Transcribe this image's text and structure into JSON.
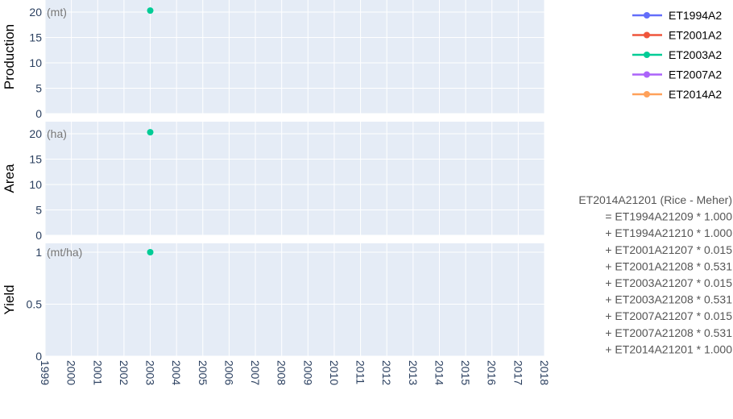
{
  "chart_data": {
    "type": "scatter",
    "x_range": [
      1999,
      2018
    ],
    "x_ticks": [
      "1999",
      "2000",
      "2001",
      "2002",
      "2003",
      "2004",
      "2005",
      "2006",
      "2007",
      "2008",
      "2009",
      "2010",
      "2011",
      "2012",
      "2013",
      "2014",
      "2015",
      "2016",
      "2017",
      "2018"
    ],
    "grid": true,
    "legend_position": "top-right",
    "panels": [
      {
        "name": "production",
        "ylabel": "Production",
        "unit": "(mt)",
        "ylim": [
          0,
          21.5
        ],
        "y_ticks": [
          {
            "value": 0,
            "label": "0"
          },
          {
            "value": 5,
            "label": "5"
          },
          {
            "value": 10,
            "label": "10"
          },
          {
            "value": 15,
            "label": "15"
          },
          {
            "value": 20,
            "label": "20"
          }
        ],
        "points": [
          {
            "series": "ET2003A2",
            "x": 2003,
            "y": 20.3
          }
        ]
      },
      {
        "name": "area",
        "ylabel": "Area",
        "unit": "(ha)",
        "ylim": [
          0,
          21.5
        ],
        "y_ticks": [
          {
            "value": 0,
            "label": "0"
          },
          {
            "value": 5,
            "label": "5"
          },
          {
            "value": 10,
            "label": "10"
          },
          {
            "value": 15,
            "label": "15"
          },
          {
            "value": 20,
            "label": "20"
          }
        ],
        "points": [
          {
            "series": "ET2003A2",
            "x": 2003,
            "y": 20.3
          }
        ]
      },
      {
        "name": "yield",
        "ylabel": "Yield",
        "unit": "(mt/ha)",
        "ylim": [
          0,
          1.07
        ],
        "y_ticks": [
          {
            "value": 0,
            "label": "0"
          },
          {
            "value": 0.5,
            "label": "0.5"
          },
          {
            "value": 1,
            "label": "1"
          }
        ],
        "points": [
          {
            "series": "ET2003A2",
            "x": 2003,
            "y": 1.0
          }
        ]
      }
    ],
    "series": [
      {
        "name": "ET1994A2",
        "color": "#636efa"
      },
      {
        "name": "ET2001A2",
        "color": "#ef553b"
      },
      {
        "name": "ET2003A2",
        "color": "#00cc96"
      },
      {
        "name": "ET2007A2",
        "color": "#ab63fa"
      },
      {
        "name": "ET2014A2",
        "color": "#ffa15a"
      }
    ],
    "annotation": [
      "ET2014A21201 (Rice - Meher)",
      "= ET1994A21209 * 1.000",
      "+ ET1994A21210 * 1.000",
      "+ ET2001A21207 * 0.015",
      "+ ET2001A21208 * 0.531",
      "+ ET2003A21207 * 0.015",
      "+ ET2003A21208 * 0.531",
      "+ ET2007A21207 * 0.015",
      "+ ET2007A21208 * 0.531",
      "+ ET2014A21201 * 1.000"
    ]
  }
}
